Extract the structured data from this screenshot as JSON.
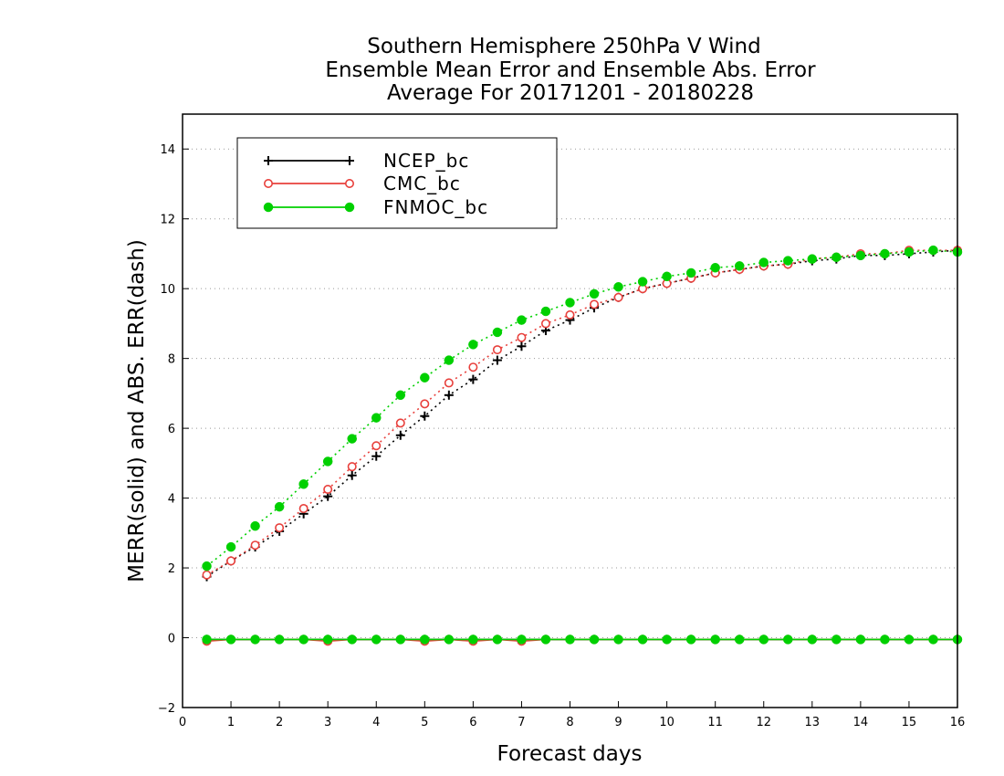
{
  "chart_data": {
    "type": "line",
    "title": [
      "Southern Hemisphere 250hPa V Wind",
      "Ensemble Mean Error and Ensemble Abs. Error",
      "Average For 20171201 - 20180228"
    ],
    "xlabel": "Forecast days",
    "ylabel": "MERR(solid) and ABS. ERR(dash)",
    "xlim": [
      0,
      16
    ],
    "ylim": [
      -2,
      15
    ],
    "xticks": [
      "0",
      "1",
      "2",
      "3",
      "4",
      "5",
      "6",
      "7",
      "8",
      "9",
      "10",
      "11",
      "12",
      "13",
      "14",
      "15",
      "16"
    ],
    "yticks": [
      "−2",
      "0",
      "2",
      "4",
      "6",
      "8",
      "10",
      "12",
      "14"
    ],
    "grid": "horizontal dotted",
    "legend_position": "top-left",
    "x": [
      0.5,
      1,
      1.5,
      2,
      2.5,
      3,
      3.5,
      4,
      4.5,
      5,
      5.5,
      6,
      6.5,
      7,
      7.5,
      8,
      8.5,
      9,
      9.5,
      10,
      10.5,
      11,
      11.5,
      12,
      12.5,
      13,
      13.5,
      14,
      14.5,
      15,
      15.5,
      16
    ],
    "series": [
      {
        "name": "NCEP_bc",
        "color": "#000000",
        "marker": "plus",
        "abs_err": [
          1.75,
          2.2,
          2.6,
          3.05,
          3.55,
          4.05,
          4.65,
          5.2,
          5.8,
          6.35,
          6.95,
          7.4,
          7.95,
          8.35,
          8.8,
          9.1,
          9.45,
          9.75,
          10.0,
          10.15,
          10.3,
          10.45,
          10.55,
          10.65,
          10.7,
          10.8,
          10.85,
          10.95,
          10.95,
          11.0,
          11.05,
          11.1
        ],
        "mean_err": [
          -0.05,
          -0.05,
          -0.05,
          -0.05,
          -0.05,
          -0.05,
          -0.05,
          -0.05,
          -0.05,
          -0.05,
          -0.05,
          -0.05,
          -0.05,
          -0.05,
          -0.05,
          -0.05,
          -0.05,
          -0.05,
          -0.05,
          -0.05,
          -0.05,
          -0.05,
          -0.05,
          -0.05,
          -0.05,
          -0.05,
          -0.05,
          -0.05,
          -0.05,
          -0.05,
          -0.05,
          -0.05
        ]
      },
      {
        "name": "CMC_bc",
        "color": "#e8403c",
        "marker": "open-circle",
        "abs_err": [
          1.8,
          2.2,
          2.65,
          3.15,
          3.7,
          4.25,
          4.9,
          5.5,
          6.15,
          6.7,
          7.3,
          7.75,
          8.25,
          8.6,
          9.0,
          9.25,
          9.55,
          9.75,
          10.0,
          10.15,
          10.3,
          10.45,
          10.55,
          10.65,
          10.7,
          10.85,
          10.9,
          11.0,
          11.0,
          11.1,
          11.1,
          11.1
        ],
        "mean_err": [
          -0.1,
          -0.05,
          -0.05,
          -0.05,
          -0.05,
          -0.1,
          -0.05,
          -0.05,
          -0.05,
          -0.1,
          -0.05,
          -0.1,
          -0.05,
          -0.1,
          -0.05,
          -0.05,
          -0.05,
          -0.05,
          -0.05,
          -0.05,
          -0.05,
          -0.05,
          -0.05,
          -0.05,
          -0.05,
          -0.05,
          -0.05,
          -0.05,
          -0.05,
          -0.05,
          -0.05,
          -0.05
        ]
      },
      {
        "name": "FNMOC_bc",
        "color": "#00d000",
        "marker": "filled-circle",
        "abs_err": [
          2.05,
          2.6,
          3.2,
          3.75,
          4.4,
          5.05,
          5.7,
          6.3,
          6.95,
          7.45,
          7.95,
          8.4,
          8.75,
          9.1,
          9.35,
          9.6,
          9.85,
          10.05,
          10.2,
          10.35,
          10.45,
          10.6,
          10.65,
          10.75,
          10.8,
          10.85,
          10.9,
          10.95,
          11.0,
          11.05,
          11.1,
          11.05
        ],
        "mean_err": [
          -0.05,
          -0.05,
          -0.05,
          -0.05,
          -0.05,
          -0.05,
          -0.05,
          -0.05,
          -0.05,
          -0.05,
          -0.05,
          -0.05,
          -0.05,
          -0.05,
          -0.05,
          -0.05,
          -0.05,
          -0.05,
          -0.05,
          -0.05,
          -0.05,
          -0.05,
          -0.05,
          -0.05,
          -0.05,
          -0.05,
          -0.05,
          -0.05,
          -0.05,
          -0.05,
          -0.05,
          -0.05
        ]
      }
    ]
  }
}
